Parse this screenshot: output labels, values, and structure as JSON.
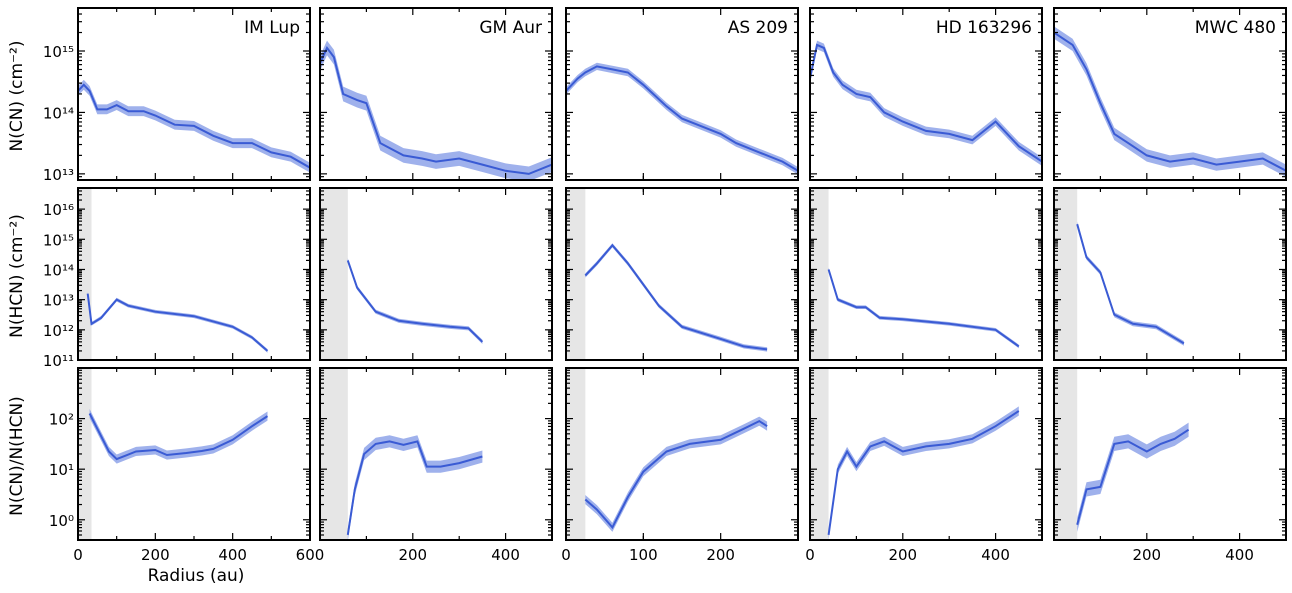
{
  "chart_data": {
    "type": "line",
    "xlabel": "Radius (au)",
    "line_color": "#3a5bd4",
    "band_color": "#7f97e6",
    "mask_color": "#e6e6e6",
    "row_labels": [
      "N(CN) (cm⁻²)",
      "N(HCN) (cm⁻²)",
      "N(CN)/N(HCN)"
    ],
    "rows": [
      {
        "ylim_log": [
          12.9,
          15.7
        ],
        "ytick_labels": [
          "10¹³",
          "10¹⁴",
          "10¹⁵"
        ],
        "ytick_values": [
          13,
          14,
          15
        ]
      },
      {
        "ylim_log": [
          11,
          16.7
        ],
        "ytick_labels": [
          "10¹¹",
          "10¹²",
          "10¹³",
          "10¹⁴",
          "10¹⁵",
          "10¹⁶"
        ],
        "ytick_values": [
          11,
          12,
          13,
          14,
          15,
          16
        ]
      },
      {
        "ylim_log": [
          -0.4,
          3.0
        ],
        "ytick_labels": [
          "10⁰",
          "10¹",
          "10²"
        ],
        "ytick_values": [
          0,
          1,
          2
        ]
      }
    ],
    "disks": [
      {
        "name": "IM Lup",
        "xlim": [
          0,
          600
        ],
        "xticks": [
          0,
          200,
          400,
          600
        ],
        "xtick_labels": [
          "0",
          "200",
          "400",
          "600"
        ],
        "mask": 35,
        "cn": [
          [
            0,
            14.35
          ],
          [
            15,
            14.45
          ],
          [
            30,
            14.35
          ],
          [
            50,
            14.05
          ],
          [
            75,
            14.05
          ],
          [
            100,
            14.12
          ],
          [
            130,
            14.02
          ],
          [
            170,
            14.02
          ],
          [
            200,
            13.95
          ],
          [
            250,
            13.8
          ],
          [
            300,
            13.78
          ],
          [
            350,
            13.62
          ],
          [
            400,
            13.5
          ],
          [
            450,
            13.5
          ],
          [
            500,
            13.35
          ],
          [
            550,
            13.28
          ],
          [
            600,
            13.1
          ]
        ],
        "cn_err": 0.08,
        "hcn": [
          [
            25,
            13.2
          ],
          [
            35,
            12.2
          ],
          [
            60,
            12.4
          ],
          [
            100,
            13.0
          ],
          [
            130,
            12.8
          ],
          [
            200,
            12.6
          ],
          [
            300,
            12.45
          ],
          [
            400,
            12.1
          ],
          [
            450,
            11.75
          ],
          [
            490,
            11.3
          ]
        ],
        "hcn_err": 0.06,
        "ratio": [
          [
            30,
            2.1
          ],
          [
            50,
            1.8
          ],
          [
            80,
            1.35
          ],
          [
            100,
            1.2
          ],
          [
            150,
            1.35
          ],
          [
            200,
            1.38
          ],
          [
            230,
            1.28
          ],
          [
            280,
            1.32
          ],
          [
            320,
            1.36
          ],
          [
            350,
            1.4
          ],
          [
            400,
            1.58
          ],
          [
            450,
            1.85
          ],
          [
            490,
            2.05
          ]
        ],
        "ratio_err": 0.09
      },
      {
        "name": "GM Aur",
        "xlim": [
          0,
          500
        ],
        "xticks": [
          200,
          400
        ],
        "xtick_labels": [
          "200",
          "400"
        ],
        "mask": 60,
        "cn": [
          [
            0,
            14.8
          ],
          [
            15,
            15.05
          ],
          [
            30,
            14.9
          ],
          [
            50,
            14.3
          ],
          [
            80,
            14.2
          ],
          [
            100,
            14.15
          ],
          [
            130,
            13.5
          ],
          [
            180,
            13.3
          ],
          [
            220,
            13.25
          ],
          [
            250,
            13.2
          ],
          [
            300,
            13.25
          ],
          [
            350,
            13.15
          ],
          [
            400,
            13.05
          ],
          [
            450,
            13.0
          ],
          [
            500,
            13.15
          ]
        ],
        "cn_err": 0.12,
        "hcn": [
          [
            60,
            14.3
          ],
          [
            80,
            13.4
          ],
          [
            120,
            12.6
          ],
          [
            170,
            12.3
          ],
          [
            220,
            12.2
          ],
          [
            280,
            12.1
          ],
          [
            320,
            12.05
          ],
          [
            350,
            11.6
          ]
        ],
        "hcn_err": 0.07,
        "ratio": [
          [
            60,
            -0.3
          ],
          [
            75,
            0.6
          ],
          [
            95,
            1.3
          ],
          [
            120,
            1.5
          ],
          [
            150,
            1.55
          ],
          [
            180,
            1.48
          ],
          [
            210,
            1.55
          ],
          [
            230,
            1.05
          ],
          [
            260,
            1.05
          ],
          [
            300,
            1.12
          ],
          [
            350,
            1.25
          ]
        ],
        "ratio_err": 0.12
      },
      {
        "name": "AS 209",
        "xlim": [
          0,
          300
        ],
        "xticks": [
          0,
          100,
          200
        ],
        "xtick_labels": [
          "0",
          "100",
          "200"
        ],
        "mask": 25,
        "cn": [
          [
            0,
            14.35
          ],
          [
            15,
            14.55
          ],
          [
            25,
            14.65
          ],
          [
            40,
            14.75
          ],
          [
            60,
            14.7
          ],
          [
            80,
            14.65
          ],
          [
            100,
            14.45
          ],
          [
            130,
            14.1
          ],
          [
            150,
            13.9
          ],
          [
            200,
            13.65
          ],
          [
            220,
            13.5
          ],
          [
            250,
            13.35
          ],
          [
            280,
            13.2
          ],
          [
            300,
            13.05
          ]
        ],
        "cn_err": 0.06,
        "hcn": [
          [
            25,
            13.8
          ],
          [
            40,
            14.2
          ],
          [
            60,
            14.8
          ],
          [
            80,
            14.2
          ],
          [
            120,
            12.8
          ],
          [
            150,
            12.1
          ],
          [
            200,
            11.7
          ],
          [
            230,
            11.45
          ],
          [
            260,
            11.35
          ]
        ],
        "hcn_err": 0.07,
        "ratio": [
          [
            25,
            0.4
          ],
          [
            40,
            0.2
          ],
          [
            60,
            -0.15
          ],
          [
            80,
            0.45
          ],
          [
            100,
            0.95
          ],
          [
            130,
            1.35
          ],
          [
            160,
            1.5
          ],
          [
            200,
            1.58
          ],
          [
            230,
            1.8
          ],
          [
            250,
            1.95
          ],
          [
            260,
            1.85
          ]
        ],
        "ratio_err": 0.09
      },
      {
        "name": "HD 163296",
        "xlim": [
          0,
          500
        ],
        "xticks": [
          0,
          200,
          400
        ],
        "xtick_labels": [
          "0",
          "200",
          "400"
        ],
        "mask": 40,
        "cn": [
          [
            0,
            14.55
          ],
          [
            15,
            15.1
          ],
          [
            30,
            15.05
          ],
          [
            50,
            14.65
          ],
          [
            70,
            14.45
          ],
          [
            100,
            14.3
          ],
          [
            130,
            14.25
          ],
          [
            160,
            14.0
          ],
          [
            200,
            13.85
          ],
          [
            250,
            13.7
          ],
          [
            300,
            13.65
          ],
          [
            350,
            13.55
          ],
          [
            400,
            13.85
          ],
          [
            450,
            13.45
          ],
          [
            500,
            13.2
          ]
        ],
        "cn_err": 0.07,
        "hcn": [
          [
            40,
            14.0
          ],
          [
            60,
            13.0
          ],
          [
            100,
            12.75
          ],
          [
            120,
            12.75
          ],
          [
            150,
            12.4
          ],
          [
            200,
            12.35
          ],
          [
            300,
            12.2
          ],
          [
            400,
            12.0
          ],
          [
            450,
            11.45
          ]
        ],
        "hcn_err": 0.06,
        "ratio": [
          [
            40,
            -0.3
          ],
          [
            60,
            1.0
          ],
          [
            80,
            1.35
          ],
          [
            100,
            1.05
          ],
          [
            130,
            1.45
          ],
          [
            160,
            1.55
          ],
          [
            200,
            1.35
          ],
          [
            250,
            1.45
          ],
          [
            300,
            1.5
          ],
          [
            350,
            1.6
          ],
          [
            400,
            1.85
          ],
          [
            450,
            2.15
          ]
        ],
        "ratio_err": 0.09
      },
      {
        "name": "MWC 480",
        "xlim": [
          0,
          500
        ],
        "xticks": [
          200,
          400
        ],
        "xtick_labels": [
          "200",
          "400"
        ],
        "mask": 50,
        "cn": [
          [
            0,
            15.3
          ],
          [
            40,
            15.1
          ],
          [
            70,
            14.7
          ],
          [
            100,
            14.15
          ],
          [
            130,
            13.65
          ],
          [
            160,
            13.5
          ],
          [
            200,
            13.3
          ],
          [
            250,
            13.2
          ],
          [
            300,
            13.25
          ],
          [
            350,
            13.15
          ],
          [
            400,
            13.2
          ],
          [
            450,
            13.25
          ],
          [
            500,
            13.05
          ]
        ],
        "cn_err": 0.1,
        "hcn": [
          [
            50,
            15.5
          ],
          [
            70,
            14.4
          ],
          [
            100,
            13.9
          ],
          [
            130,
            12.5
          ],
          [
            170,
            12.2
          ],
          [
            220,
            12.1
          ],
          [
            280,
            11.55
          ]
        ],
        "hcn_err": 0.08,
        "ratio": [
          [
            50,
            -0.1
          ],
          [
            70,
            0.6
          ],
          [
            100,
            0.65
          ],
          [
            130,
            1.5
          ],
          [
            160,
            1.55
          ],
          [
            200,
            1.35
          ],
          [
            230,
            1.5
          ],
          [
            260,
            1.6
          ],
          [
            290,
            1.78
          ]
        ],
        "ratio_err": 0.14
      }
    ]
  }
}
